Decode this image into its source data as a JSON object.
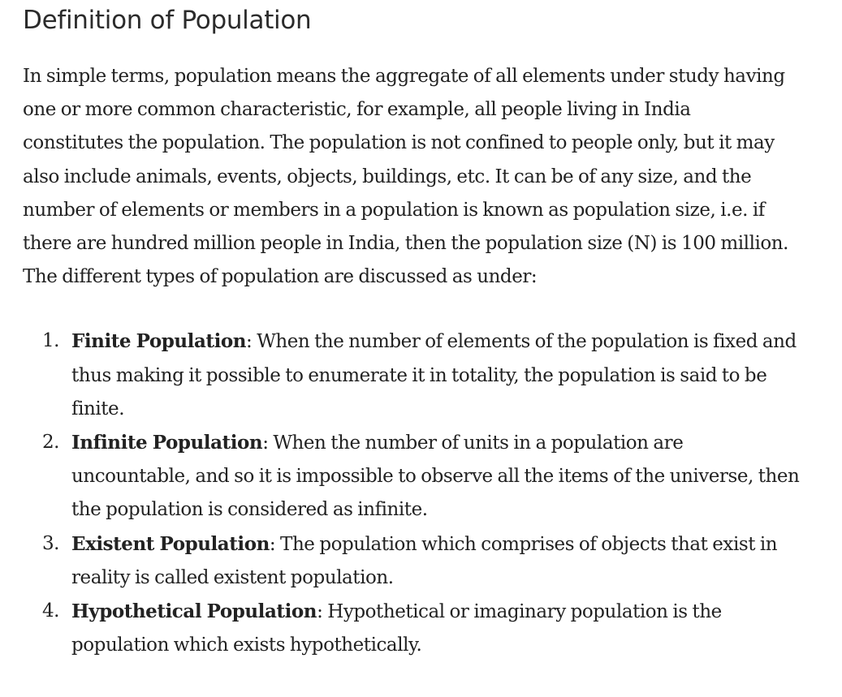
{
  "article": {
    "heading": "Definition of Population",
    "intro": "In simple terms, population means the aggregate of all elements under study having one or more common characteristic, for example, all people living in India constitutes the population. The population is not confined to people only, but it may also include animals, events, objects, buildings, etc. It can be of any size, and the number of elements or members in a population is known as population size, i.e. if there are hundred million people in India, then the population size (N) is 100 million. The different types of population are discussed as under:",
    "types": [
      {
        "number": "1.",
        "term": "Finite Population",
        "desc": ": When the number of elements of the population is fixed and thus making it possible to enumerate it in totality, the population is said to be finite."
      },
      {
        "number": "2.",
        "term": "Infinite Population",
        "desc": ": When the number of units in a population are uncountable, and so it is impossible to observe all the items of the universe, then the population is considered as infinite."
      },
      {
        "number": "3.",
        "term": "Existent Population",
        "desc": ": The population which comprises of objects that exist in reality is called existent population."
      },
      {
        "number": "4.",
        "term": "Hypothetical Population",
        "desc": ": Hypothetical or imaginary population is the population which exists hypothetically."
      }
    ]
  }
}
